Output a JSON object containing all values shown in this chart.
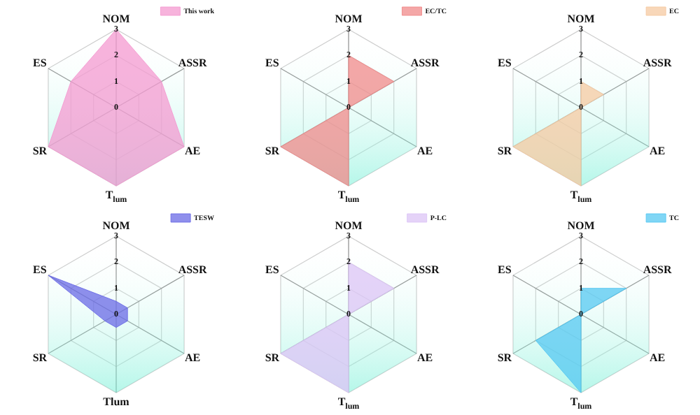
{
  "chart_data": [
    {
      "type": "radar",
      "categories": [
        "NOM",
        "ASSR",
        "AE",
        "T$_{lum}$",
        "SR",
        "ES"
      ],
      "series": [
        {
          "name": "This work",
          "color": "#f49ad0",
          "values": [
            3,
            2,
            3,
            3,
            3,
            2
          ]
        }
      ],
      "ylim": [
        0,
        3
      ],
      "yticks": [
        0,
        1,
        2,
        3
      ],
      "legend": "top right",
      "grid": true
    },
    {
      "type": "radar",
      "categories": [
        "NOM",
        "ASSR",
        "AE",
        "T$_{lum}$",
        "SR",
        "ES"
      ],
      "series": [
        {
          "name": "EC/TC",
          "color": "#f08a8a",
          "values": [
            2,
            2,
            0,
            3,
            3,
            0
          ]
        }
      ],
      "ylim": [
        0,
        3
      ],
      "yticks": [
        0,
        1,
        2,
        3
      ],
      "legend": "top right",
      "grid": true
    },
    {
      "type": "radar",
      "categories": [
        "NOM",
        "ASSR",
        "AE",
        "T$_{lum}$",
        "SR",
        "ES"
      ],
      "series": [
        {
          "name": "EC",
          "color": "#f5c9a2",
          "values": [
            1,
            1,
            0,
            3,
            3,
            0
          ]
        }
      ],
      "ylim": [
        0,
        3
      ],
      "yticks": [
        0,
        1,
        2,
        3
      ],
      "legend": "top right",
      "grid": true
    },
    {
      "type": "radar",
      "categories": [
        "NOM",
        "ASSR",
        "AE",
        "Tlum",
        "SR",
        "ES"
      ],
      "series": [
        {
          "name": "TESW",
          "color": "#6a6ae6",
          "values": [
            0.5,
            0.5,
            0.5,
            0.5,
            0.5,
            3
          ]
        }
      ],
      "ylim": [
        0,
        3
      ],
      "yticks": [
        0,
        1,
        2,
        3
      ],
      "legend": "top right",
      "grid": true
    },
    {
      "type": "radar",
      "categories": [
        "NOM",
        "ASSR",
        "AE",
        "T$_{lum}$",
        "SR",
        "ES"
      ],
      "series": [
        {
          "name": "P-LC",
          "color": "#dcc4f6",
          "values": [
            2,
            2,
            0,
            3,
            3,
            0
          ]
        }
      ],
      "ylim": [
        0,
        3
      ],
      "yticks": [
        0,
        1,
        2,
        3
      ],
      "legend": "top right",
      "grid": true
    },
    {
      "type": "radar",
      "categories": [
        "NOM",
        "ASSR",
        "AE",
        "T$_{lum}$",
        "SR",
        "ES"
      ],
      "series": [
        {
          "name": "TC",
          "color": "#55c8f2",
          "values": [
            1,
            2,
            0,
            3,
            2,
            0
          ]
        }
      ],
      "ylim": [
        0,
        3
      ],
      "yticks": [
        0,
        1,
        2,
        3
      ],
      "legend": "top right",
      "grid": true
    }
  ]
}
